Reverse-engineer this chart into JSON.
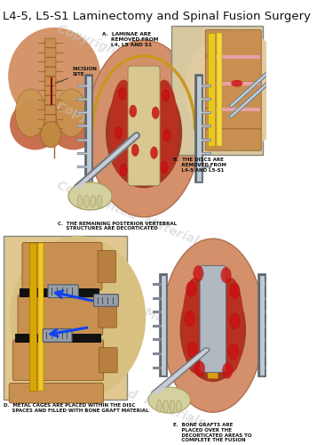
{
  "title": "L4-5, L5-S1 Laminectomy and Spinal Fusion Surgery",
  "title_fontsize": 9.5,
  "bg_color": "#ffffff",
  "watermark_color": "#c8c8c8",
  "label_a": "A.  LAMINAE ARE\n     REMOVED FROM\n     L4, L5 AND S1",
  "label_b": "B.  THE DISCS ARE\n     REMOVED FROM\n     L4-5 AND L5-S1",
  "label_c": "C.  THE REMAINING POSTERIOR VERTEBRAL\n     STRUCTURES ARE DECORTICATED",
  "label_d": "D.  METAL CAGES ARE PLACED WITHIN THE DISC\n     SPACES AND FILLED WITH BONE GRAFT MATERIAL",
  "label_e": "E.  BONE GRAFTS ARE\n     PLACED OVER THE\n     DECORTICATED AREAS TO\n     COMPLETE THE FUSION",
  "incision_label": "INCISION\nSITE",
  "skin_color": "#d4956a",
  "skin_light": "#e8b090",
  "bone_color": "#c8a060",
  "bone_texture": "#b08040",
  "spinal_cord_color": "#e8c840",
  "blood_color": "#cc1111",
  "metal_color": "#a0a8b0",
  "metal_dark": "#707880",
  "pink_disc_color": "#e8a0a8",
  "retractor_color": "#888890",
  "muscle_red": "#c04030",
  "ligament_yellow": "#d4a010",
  "hand_color": "#d4d0a0"
}
